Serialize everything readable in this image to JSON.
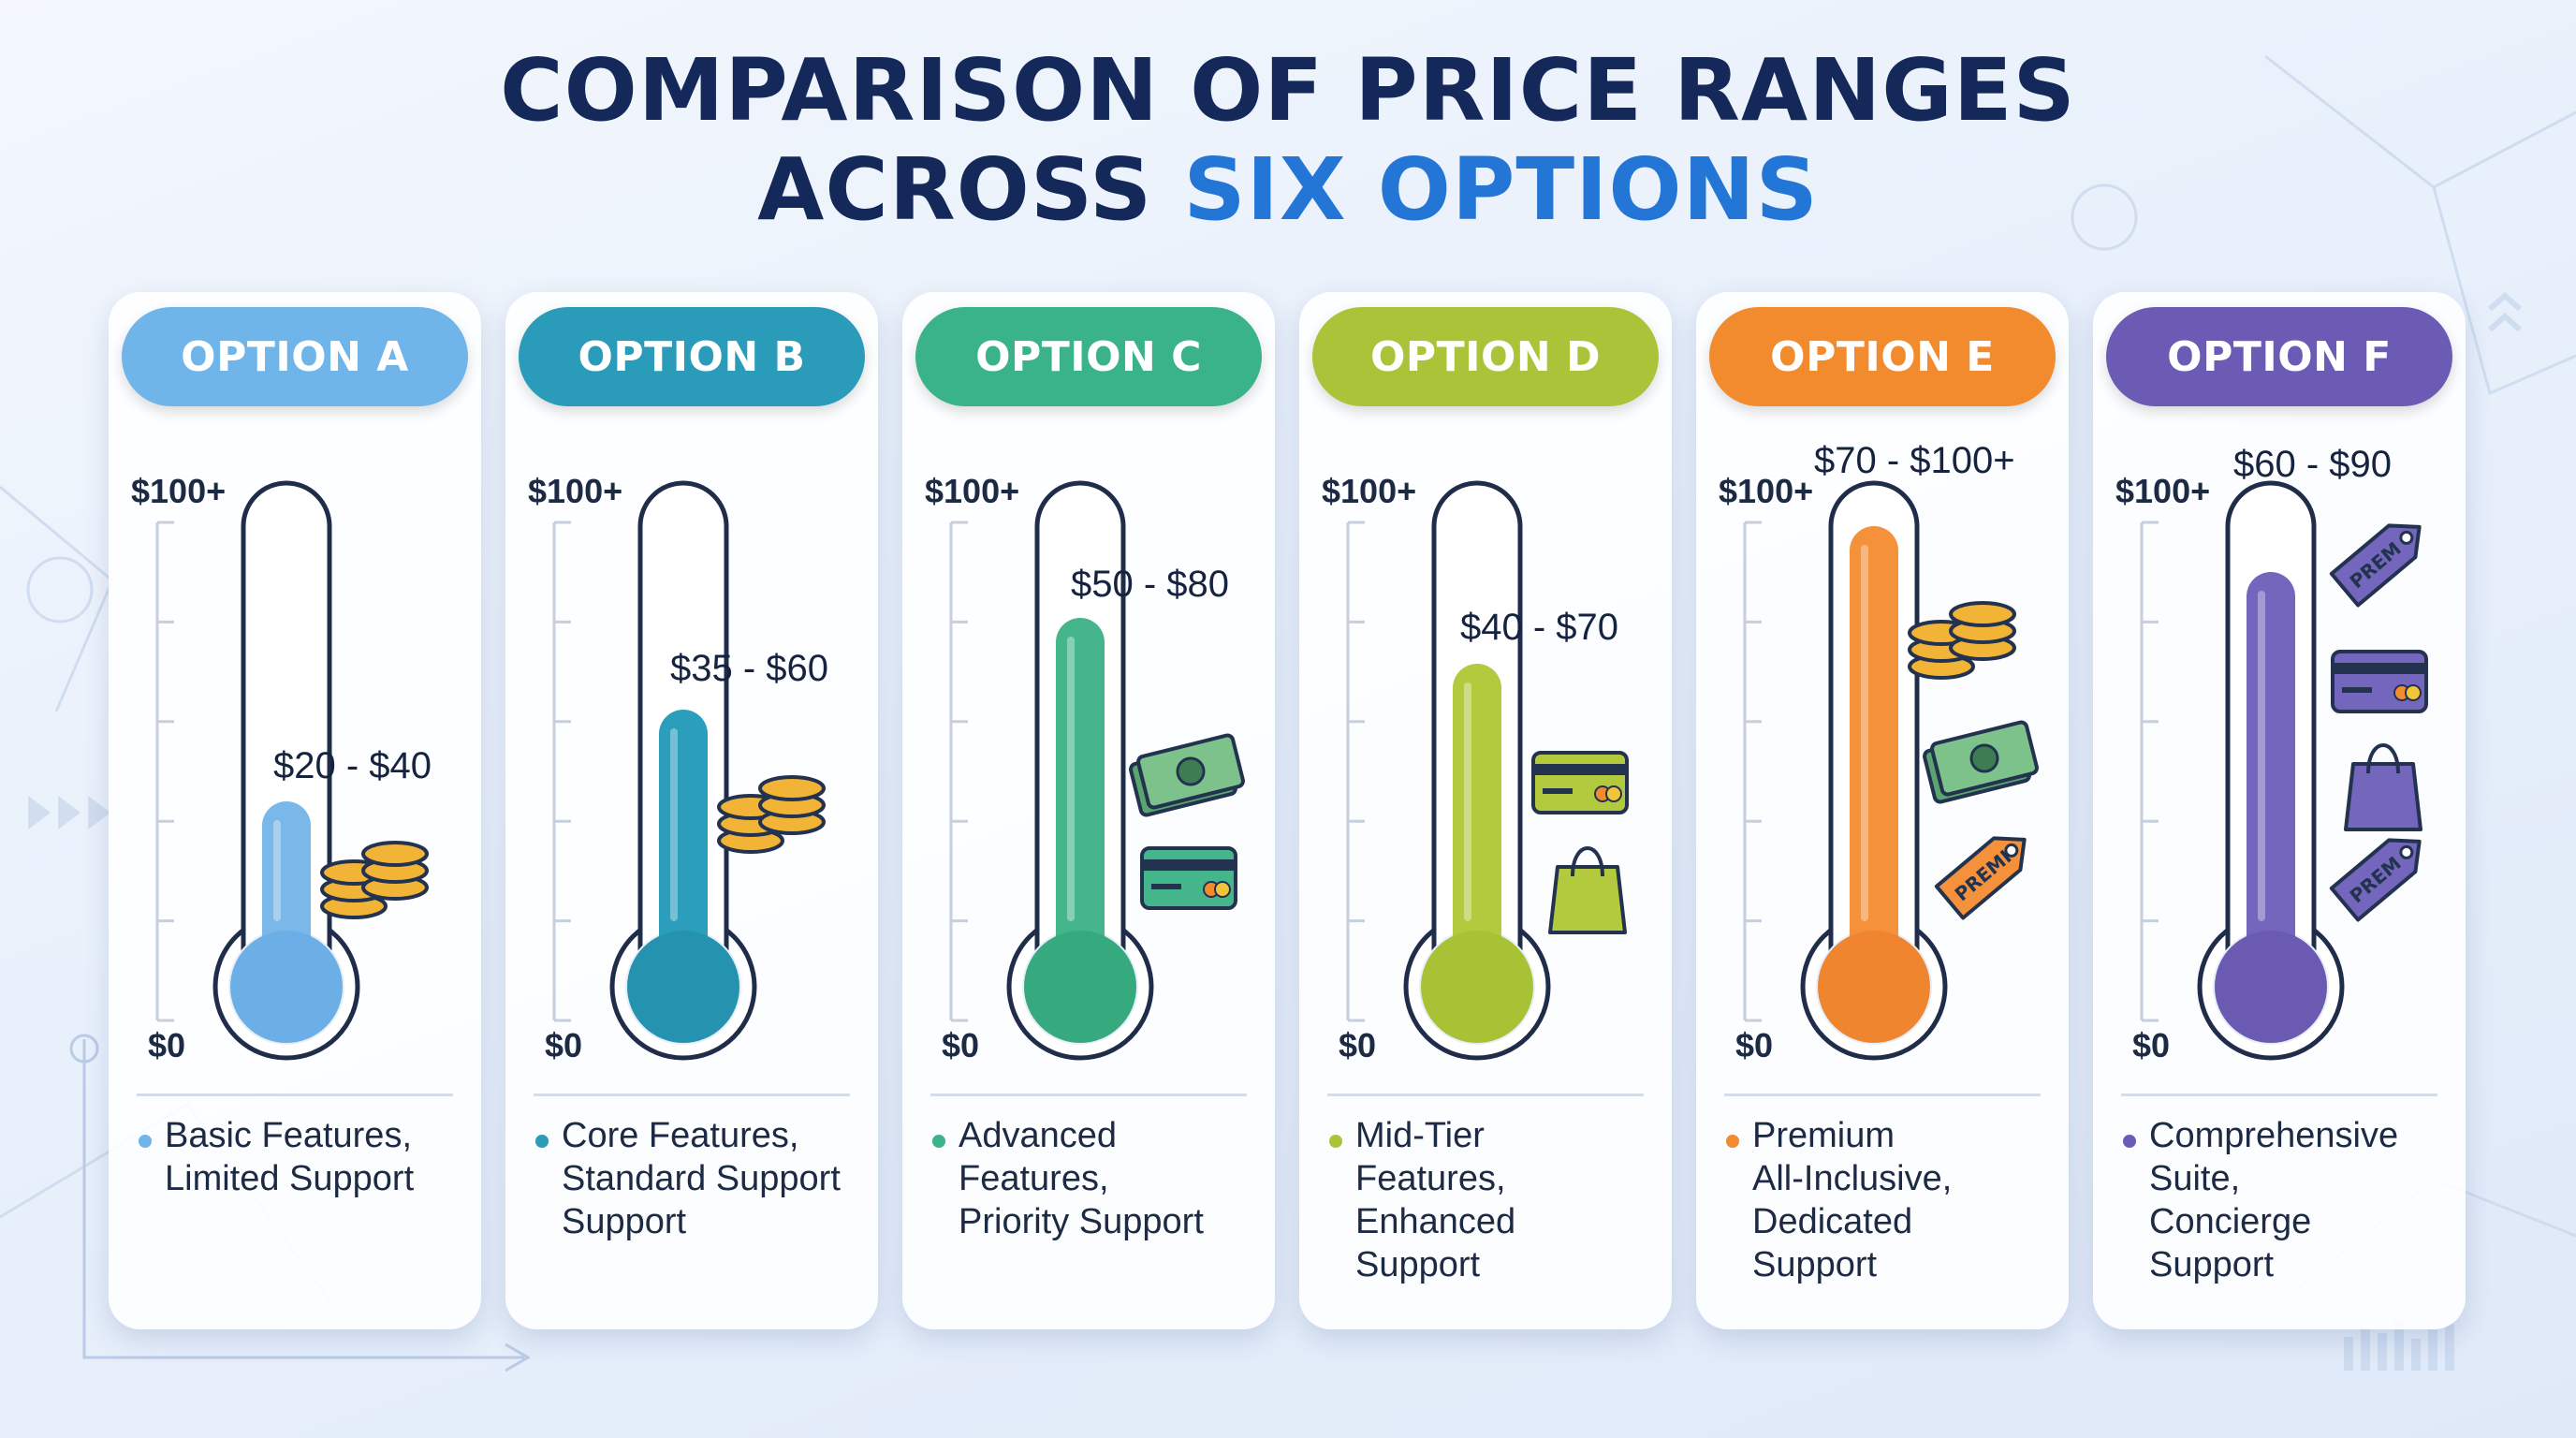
{
  "title": {
    "line1": "COMPARISON OF PRICE RANGES",
    "line2_prefix": "ACROSS ",
    "line2_accent": "SIX OPTIONS"
  },
  "colors": {
    "title": "#14295a",
    "accent": "#2476d6"
  },
  "chart_data": {
    "type": "bar",
    "subtype": "range-thermometer",
    "ylim": [
      0,
      100
    ],
    "y_top_label": "$100+",
    "y_bottom_label": "$0",
    "categories": [
      "OPTION A",
      "OPTION B",
      "OPTION C",
      "OPTION D",
      "OPTION E",
      "OPTION F"
    ],
    "series": [
      {
        "range_label": "$20 - $40",
        "low": 20,
        "high": 40
      },
      {
        "range_label": "$35 - $60",
        "low": 35,
        "high": 60
      },
      {
        "range_label": "$50 - $80",
        "low": 50,
        "high": 80
      },
      {
        "range_label": "$40 - $70",
        "low": 40,
        "high": 70
      },
      {
        "range_label": "$70 - $100+",
        "low": 70,
        "high": 100
      },
      {
        "range_label": "$60 - $90",
        "low": 60,
        "high": 90
      }
    ]
  },
  "options": [
    {
      "name": "OPTION A",
      "pill_color": "#6fb5ea",
      "fill_color": "#7ab8ea",
      "bulb_color": "#6caee6",
      "description": [
        "Basic Features,",
        "Limited Support"
      ],
      "icons": [
        "coins-icon"
      ]
    },
    {
      "name": "OPTION B",
      "pill_color": "#2a9bb8",
      "fill_color": "#2b9ebb",
      "bulb_color": "#2593b0",
      "description": [
        "Core Features,",
        "Standard Support",
        "Support"
      ],
      "icons": [
        "coins-icon"
      ]
    },
    {
      "name": "OPTION C",
      "pill_color": "#3bb38a",
      "fill_color": "#45b68c",
      "bulb_color": "#36a97f",
      "description": [
        "Advanced",
        "Features,",
        "Priority Support"
      ],
      "icons": [
        "banknote-icon",
        "credit-card-icon"
      ]
    },
    {
      "name": "OPTION D",
      "pill_color": "#aac43a",
      "fill_color": "#b3ca3e",
      "bulb_color": "#a7c234",
      "description": [
        "Mid-Tier",
        "Features,",
        "Enhanced",
        "Support"
      ],
      "icons": [
        "credit-card-icon",
        "shopping-bag-icon"
      ]
    },
    {
      "name": "OPTION E",
      "pill_color": "#f28a2e",
      "fill_color": "#f5913a",
      "bulb_color": "#f08530",
      "description": [
        "Premium",
        "All-Inclusive,",
        "Dedicated",
        "Support"
      ],
      "icons": [
        "coins-icon",
        "banknote-icon",
        "price-tag-icon"
      ],
      "tag_text": "PREMI"
    },
    {
      "name": "OPTION F",
      "pill_color": "#6b5bb5",
      "fill_color": "#7465bd",
      "bulb_color": "#6a5ab2",
      "description": [
        "Comprehensive",
        "Suite,",
        "Concierge",
        "Support"
      ],
      "icons": [
        "price-tag-icon",
        "credit-card-icon",
        "shopping-bag-icon",
        "price-tag-icon"
      ],
      "tag_text": "PREM"
    }
  ]
}
